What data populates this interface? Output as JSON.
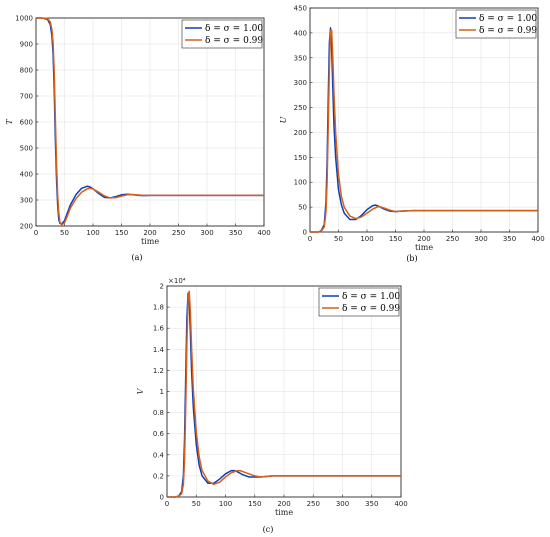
{
  "chart_data": [
    {
      "type": "line",
      "caption": "(a)",
      "xlabel": "time",
      "ylabel": "T",
      "xlim": [
        0,
        400
      ],
      "ylim": [
        200,
        1000
      ],
      "xticks": [
        0,
        50,
        100,
        150,
        200,
        250,
        300,
        350,
        400
      ],
      "yticks": [
        200,
        300,
        400,
        500,
        600,
        700,
        800,
        900,
        1000
      ],
      "exponent_label": "",
      "grid": true,
      "legend": "top-right",
      "series": [
        {
          "name": "δ = σ = 1.00",
          "color": "#0b3fbd",
          "x": [
            0,
            10,
            20,
            25,
            28,
            30,
            32,
            34,
            36,
            38,
            40,
            42,
            45,
            50,
            55,
            60,
            70,
            80,
            90,
            95,
            100,
            110,
            120,
            130,
            140,
            150,
            160,
            170,
            180,
            190,
            200,
            220,
            250,
            300,
            350,
            400
          ],
          "y": [
            1000,
            1000,
            995,
            975,
            930,
            860,
            720,
            530,
            380,
            280,
            225,
            210,
            208,
            220,
            250,
            280,
            320,
            345,
            353,
            350,
            343,
            325,
            310,
            308,
            313,
            320,
            322,
            320,
            318,
            317,
            318,
            318,
            318,
            318,
            318,
            318
          ]
        },
        {
          "name": "δ = σ = 0.99",
          "color": "#d4601a",
          "x": [
            0,
            10,
            20,
            25,
            28,
            30,
            32,
            34,
            36,
            38,
            40,
            42,
            45,
            50,
            55,
            60,
            70,
            80,
            90,
            95,
            100,
            110,
            120,
            130,
            140,
            150,
            160,
            170,
            180,
            190,
            200,
            220,
            250,
            300,
            350,
            400
          ],
          "y": [
            1000,
            1000,
            998,
            985,
            955,
            905,
            790,
            610,
            440,
            320,
            250,
            215,
            205,
            212,
            238,
            268,
            305,
            330,
            343,
            345,
            342,
            330,
            316,
            308,
            309,
            315,
            320,
            321,
            319,
            318,
            318,
            318,
            318,
            318,
            318,
            318
          ]
        }
      ]
    },
    {
      "type": "line",
      "caption": "(b)",
      "xlabel": "time",
      "ylabel": "U",
      "xlim": [
        0,
        400
      ],
      "ylim": [
        0,
        450
      ],
      "xticks": [
        0,
        50,
        100,
        150,
        200,
        250,
        300,
        350,
        400
      ],
      "yticks": [
        0,
        50,
        100,
        150,
        200,
        250,
        300,
        350,
        400,
        450
      ],
      "exponent_label": "",
      "grid": true,
      "legend": "top-right",
      "series": [
        {
          "name": "δ = σ = 1.00",
          "color": "#0b3fbd",
          "x": [
            0,
            15,
            20,
            25,
            28,
            30,
            32,
            34,
            36,
            38,
            40,
            42,
            45,
            50,
            55,
            60,
            70,
            80,
            90,
            100,
            110,
            115,
            120,
            130,
            140,
            150,
            160,
            180,
            200,
            250,
            300,
            350,
            400
          ],
          "y": [
            0,
            0,
            3,
            15,
            60,
            140,
            270,
            380,
            410,
            370,
            290,
            215,
            150,
            85,
            55,
            38,
            25,
            25,
            33,
            45,
            53,
            54,
            52,
            46,
            42,
            41,
            42,
            43,
            43,
            43,
            43,
            43,
            43
          ]
        },
        {
          "name": "δ = σ = 0.99",
          "color": "#d4601a",
          "x": [
            0,
            15,
            20,
            25,
            28,
            30,
            32,
            34,
            36,
            38,
            40,
            42,
            45,
            50,
            55,
            60,
            70,
            80,
            90,
            100,
            110,
            120,
            125,
            130,
            140,
            150,
            160,
            180,
            200,
            250,
            300,
            350,
            400
          ],
          "y": [
            0,
            0,
            2,
            10,
            40,
            100,
            210,
            330,
            405,
            405,
            350,
            280,
            200,
            115,
            72,
            50,
            32,
            27,
            30,
            38,
            46,
            51,
            50,
            48,
            44,
            41,
            42,
            43,
            43,
            43,
            43,
            43,
            43
          ]
        }
      ]
    },
    {
      "type": "line",
      "caption": "(c)",
      "xlabel": "time",
      "ylabel": "V",
      "xlim": [
        0,
        400
      ],
      "ylim": [
        0,
        2
      ],
      "xticks": [
        0,
        50,
        100,
        150,
        200,
        250,
        300,
        350,
        400
      ],
      "yticks": [
        0,
        0.2,
        0.4,
        0.6,
        0.8,
        1,
        1.2,
        1.4,
        1.6,
        1.8,
        2
      ],
      "exponent_label": "×10⁴",
      "grid": true,
      "legend": "top-right",
      "series": [
        {
          "name": "δ = σ = 1.00",
          "color": "#0b3fbd",
          "x": [
            0,
            15,
            20,
            25,
            28,
            30,
            32,
            34,
            36,
            38,
            40,
            42,
            45,
            50,
            55,
            60,
            70,
            80,
            90,
            100,
            110,
            115,
            120,
            130,
            140,
            150,
            160,
            180,
            200,
            250,
            300,
            350,
            400
          ],
          "y": [
            0,
            0,
            0.01,
            0.05,
            0.2,
            0.55,
            1.15,
            1.7,
            1.93,
            1.85,
            1.55,
            1.2,
            0.85,
            0.5,
            0.3,
            0.2,
            0.13,
            0.13,
            0.17,
            0.22,
            0.25,
            0.25,
            0.24,
            0.21,
            0.19,
            0.19,
            0.19,
            0.2,
            0.2,
            0.2,
            0.2,
            0.2,
            0.2
          ]
        },
        {
          "name": "δ = σ = 0.99",
          "color": "#d4601a",
          "x": [
            0,
            15,
            20,
            25,
            28,
            30,
            32,
            34,
            36,
            38,
            40,
            42,
            45,
            50,
            55,
            60,
            70,
            80,
            90,
            100,
            110,
            120,
            125,
            130,
            140,
            150,
            160,
            180,
            200,
            250,
            300,
            350,
            400
          ],
          "y": [
            0,
            0,
            0.01,
            0.03,
            0.12,
            0.35,
            0.85,
            1.45,
            1.88,
            1.95,
            1.75,
            1.42,
            1.02,
            0.62,
            0.38,
            0.25,
            0.15,
            0.12,
            0.14,
            0.19,
            0.23,
            0.25,
            0.25,
            0.24,
            0.22,
            0.2,
            0.19,
            0.2,
            0.2,
            0.2,
            0.2,
            0.2,
            0.2
          ]
        }
      ]
    }
  ]
}
